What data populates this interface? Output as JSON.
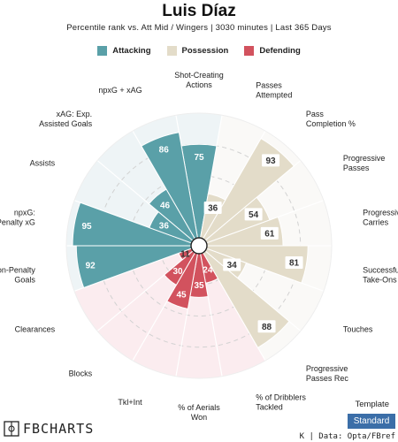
{
  "header": {
    "title": "Luis Díaz",
    "subtitle": "Percentile rank vs. Att Mid / Wingers | 3030 minutes | Last 365 Days"
  },
  "legend": [
    {
      "label": "Attacking",
      "color": "#5aa0a8"
    },
    {
      "label": "Possession",
      "color": "#e3dcc9"
    },
    {
      "label": "Defending",
      "color": "#d2525e"
    }
  ],
  "chart_data": {
    "type": "polar-bar",
    "metrics": [
      {
        "label": "Shot-Creating Actions",
        "value": 75,
        "group": "Attacking"
      },
      {
        "label": "Passes Attempted",
        "value": 36,
        "group": "Possession"
      },
      {
        "label": "Pass Completion %",
        "value": 93,
        "group": "Possession"
      },
      {
        "label": "Progressive Passes",
        "value": 54,
        "group": "Possession"
      },
      {
        "label": "Progressive Carries",
        "value": 61,
        "group": "Possession"
      },
      {
        "label": "Successful Take-Ons",
        "value": 81,
        "group": "Possession"
      },
      {
        "label": "Touches",
        "value": 34,
        "group": "Possession"
      },
      {
        "label": "Progressive Passes Rec",
        "value": 88,
        "group": "Possession"
      },
      {
        "label": "% of Dribblers Tackled",
        "value": 24,
        "group": "Defending"
      },
      {
        "label": "% of Aerials Won",
        "value": 35,
        "group": "Defending"
      },
      {
        "label": "Tkl+Int",
        "value": 45,
        "group": "Defending"
      },
      {
        "label": "Blocks",
        "value": 30,
        "group": "Defending"
      },
      {
        "label": "Clearances",
        "value": 11,
        "group": "Defending"
      },
      {
        "label": "Non-Penalty Goals",
        "value": 92,
        "group": "Attacking"
      },
      {
        "label": "npxG: Non-Penalty xG",
        "value": 95,
        "group": "Attacking"
      },
      {
        "label": "Assists",
        "value": 36,
        "group": "Attacking"
      },
      {
        "label": "xAG: Exp. Assisted Goals",
        "value": 46,
        "group": "Attacking"
      },
      {
        "label": "npxG + xAG",
        "value": 86,
        "group": "Attacking"
      }
    ],
    "rlim": [
      0,
      100
    ],
    "group_colors": {
      "Attacking": "#5aa0a8",
      "Possession": "#e3dcc9",
      "Defending": "#d2525e"
    },
    "group_bg_colors": {
      "Attacking": "#eef4f6",
      "Possession": "#faf9f7",
      "Defending": "#fbecef"
    }
  },
  "footer": {
    "logo": "FBCHARTS",
    "template_label": "Template",
    "template_button": "Standard",
    "source": "K | Data: Opta/FBref"
  }
}
